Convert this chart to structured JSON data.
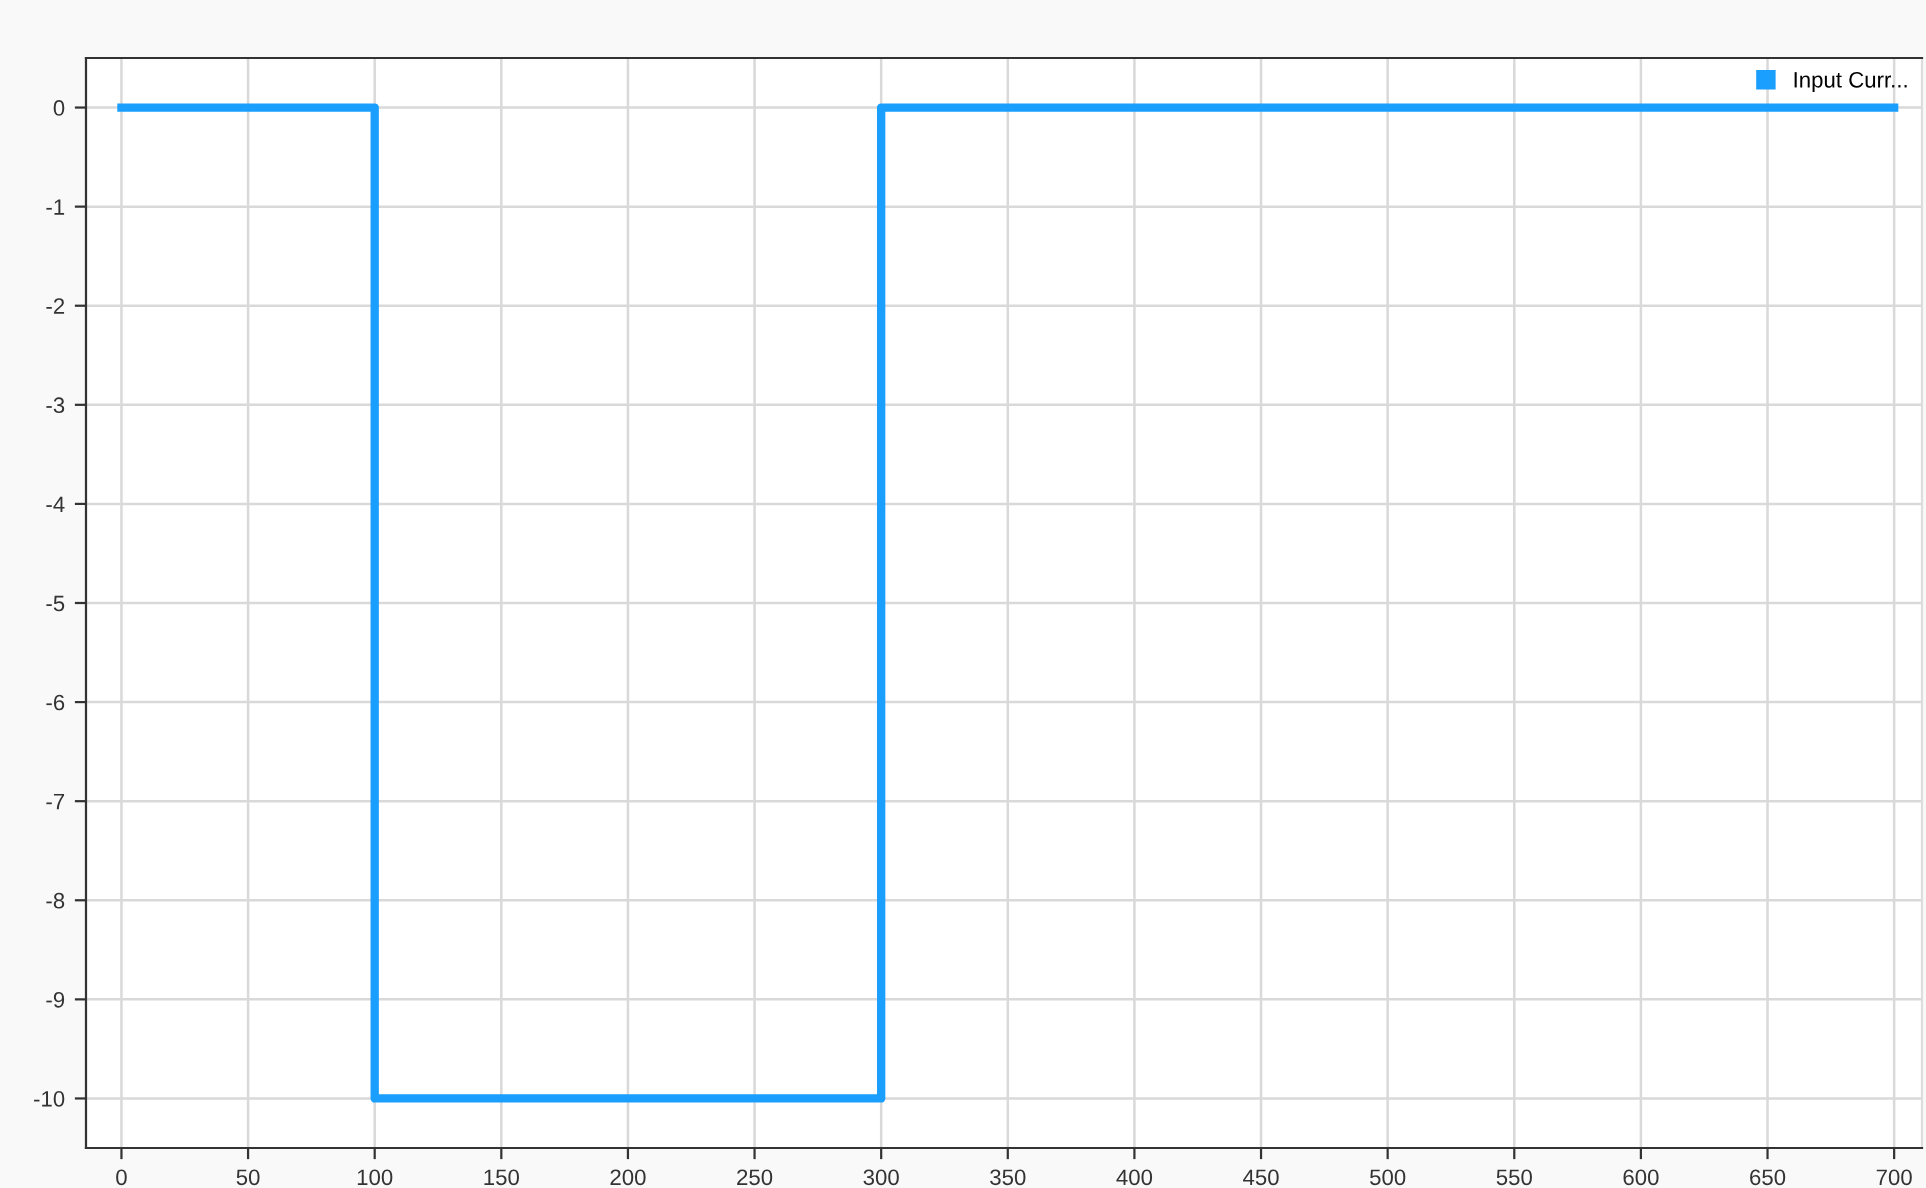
{
  "chart_data": {
    "type": "step",
    "x": [
      0,
      100,
      300,
      700
    ],
    "series": [
      {
        "name": "Input Curr...",
        "color": "#1a9fff",
        "values": [
          0,
          -10,
          0,
          0
        ]
      }
    ],
    "xlim": [
      -14,
      711
    ],
    "xticks": [
      0,
      50,
      100,
      150,
      200,
      250,
      300,
      350,
      400,
      450,
      500,
      550,
      600,
      650,
      700
    ],
    "ylim": [
      -10.5,
      0.5
    ],
    "yticks": [
      0,
      -1,
      -2,
      -3,
      -4,
      -5,
      -6,
      -7,
      -8,
      -9,
      -10
    ],
    "grid": true,
    "legend": "top right"
  }
}
